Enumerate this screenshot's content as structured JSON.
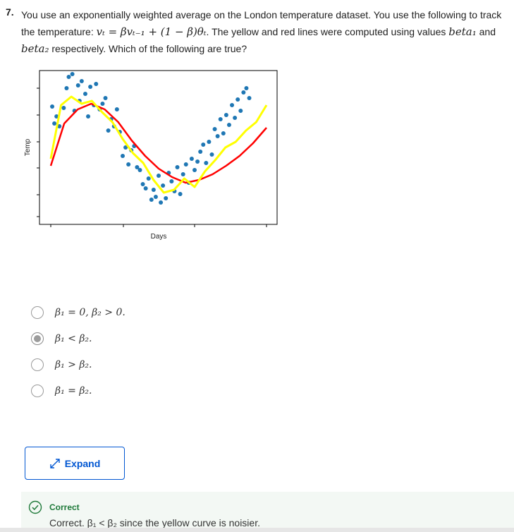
{
  "question": {
    "number": "7.",
    "intro": "You use an exponentially weighted average on the London temperature dataset. You use the following to track the temperature:",
    "formula": "vₜ = βvₜ₋₁ + (1 − β)θₜ",
    "mid": ". The yellow and red lines were computed using values",
    "beta1": "beta₁",
    "and": " and ",
    "beta2": "beta₂",
    "outro": " respectively. Which of the following are true?"
  },
  "chart_data": {
    "type": "scatter",
    "xlabel": "Days",
    "ylabel": "Temp",
    "x_range": [
      0,
      300
    ],
    "y_range": [
      0,
      10
    ],
    "scatter_color": "#1f77b4",
    "series": [
      {
        "name": "",
        "color": "#ffff00",
        "values": [
          4.0,
          7.8,
          8.4,
          7.9,
          8.1,
          7.3,
          6.6,
          5.4,
          4.4,
          3.7,
          2.5,
          1.6,
          1.8,
          2.6,
          2.0,
          3.1,
          3.9,
          4.8,
          5.2,
          6.0,
          6.6,
          7.8
        ]
      },
      {
        "name": "",
        "color": "#ff0000",
        "values": [
          3.5,
          6.5,
          7.5,
          7.9,
          7.5,
          6.6,
          5.3,
          4.2,
          3.3,
          2.7,
          2.3,
          2.5,
          2.9,
          3.5,
          4.2,
          5.1,
          6.2
        ]
      }
    ],
    "points": [
      [
        2,
        7.7
      ],
      [
        5,
        6.5
      ],
      [
        8,
        7.0
      ],
      [
        12,
        6.3
      ],
      [
        18,
        7.6
      ],
      [
        22,
        9.0
      ],
      [
        25,
        9.8
      ],
      [
        30,
        10.0
      ],
      [
        33,
        7.4
      ],
      [
        38,
        9.2
      ],
      [
        40,
        8.1
      ],
      [
        43,
        9.5
      ],
      [
        48,
        8.6
      ],
      [
        52,
        7.0
      ],
      [
        55,
        9.1
      ],
      [
        60,
        7.8
      ],
      [
        63,
        9.3
      ],
      [
        68,
        7.5
      ],
      [
        72,
        7.9
      ],
      [
        76,
        8.3
      ],
      [
        80,
        6.0
      ],
      [
        84,
        6.8
      ],
      [
        88,
        6.3
      ],
      [
        92,
        7.5
      ],
      [
        96,
        5.9
      ],
      [
        100,
        4.2
      ],
      [
        104,
        4.8
      ],
      [
        108,
        3.6
      ],
      [
        112,
        4.6
      ],
      [
        116,
        4.9
      ],
      [
        120,
        3.4
      ],
      [
        124,
        3.2
      ],
      [
        128,
        2.2
      ],
      [
        132,
        1.9
      ],
      [
        136,
        2.6
      ],
      [
        140,
        1.1
      ],
      [
        143,
        1.8
      ],
      [
        146,
        1.3
      ],
      [
        150,
        2.8
      ],
      [
        153,
        0.9
      ],
      [
        156,
        2.1
      ],
      [
        160,
        1.2
      ],
      [
        164,
        3.0
      ],
      [
        168,
        2.4
      ],
      [
        172,
        1.7
      ],
      [
        176,
        3.4
      ],
      [
        180,
        1.5
      ],
      [
        184,
        2.9
      ],
      [
        188,
        3.6
      ],
      [
        192,
        2.3
      ],
      [
        196,
        4.0
      ],
      [
        200,
        3.2
      ],
      [
        204,
        3.8
      ],
      [
        208,
        4.5
      ],
      [
        212,
        5.0
      ],
      [
        216,
        3.7
      ],
      [
        220,
        5.2
      ],
      [
        224,
        4.3
      ],
      [
        228,
        6.1
      ],
      [
        232,
        5.6
      ],
      [
        236,
        6.8
      ],
      [
        240,
        5.8
      ],
      [
        244,
        7.1
      ],
      [
        248,
        6.4
      ],
      [
        252,
        7.8
      ],
      [
        256,
        6.9
      ],
      [
        260,
        8.2
      ],
      [
        264,
        7.4
      ],
      [
        268,
        8.7
      ],
      [
        272,
        9.0
      ],
      [
        276,
        8.3
      ]
    ]
  },
  "options": [
    {
      "label": "β₁ = 0, β₂ > 0.",
      "selected": false
    },
    {
      "label": "β₁ < β₂.",
      "selected": true
    },
    {
      "label": "β₁ > β₂.",
      "selected": false
    },
    {
      "label": "β₁ = β₂.",
      "selected": false
    }
  ],
  "expand_label": "Expand",
  "feedback": {
    "status": "Correct",
    "text": "Correct. β₁ < β₂ since the yellow curve is noisier.",
    "color": "#1f7a3a"
  },
  "colors": {
    "accent": "#0056d2",
    "success": "#1f7a3a"
  }
}
